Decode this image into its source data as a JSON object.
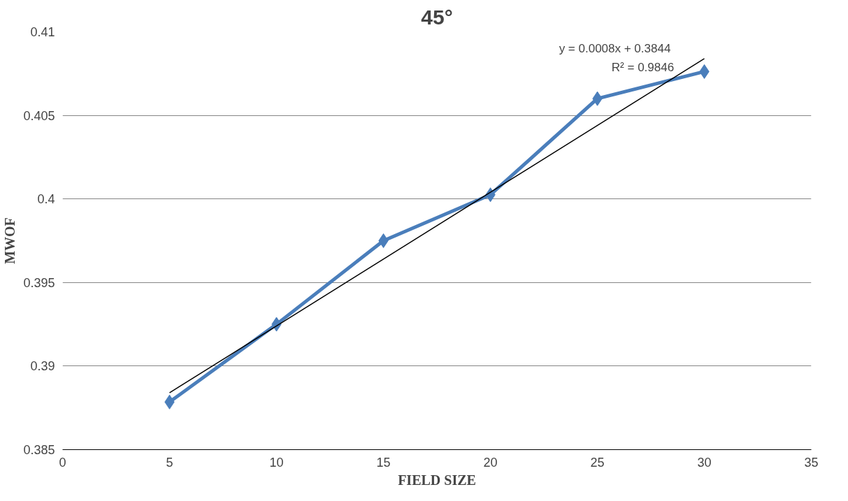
{
  "chart_data": {
    "type": "line",
    "title": "45°",
    "xlabel": "FIELD SIZE",
    "ylabel": "MWOF",
    "x": [
      5,
      10,
      15,
      20,
      25,
      30
    ],
    "series": [
      {
        "color": "#4a7ebb",
        "values": [
          0.38785,
          0.3925,
          0.3975,
          0.40025,
          0.406,
          0.40762
        ],
        "marker": "diamond"
      },
      {
        "type": "line",
        "color": "#000000",
        "x": [
          5,
          30
        ],
        "values": [
          0.3884,
          0.4084
        ],
        "marker": "none"
      }
    ],
    "annotations": [
      "y = 0.0008x + 0.3844",
      "R² = 0.9846"
    ],
    "xlim": [
      0,
      35
    ],
    "xticks": [
      0,
      5,
      10,
      15,
      20,
      25,
      30,
      35
    ],
    "ylim": [
      0.385,
      0.41
    ],
    "yticks": [
      0.385,
      0.39,
      0.395,
      0.4,
      0.405,
      0.41
    ],
    "grid": "y"
  }
}
